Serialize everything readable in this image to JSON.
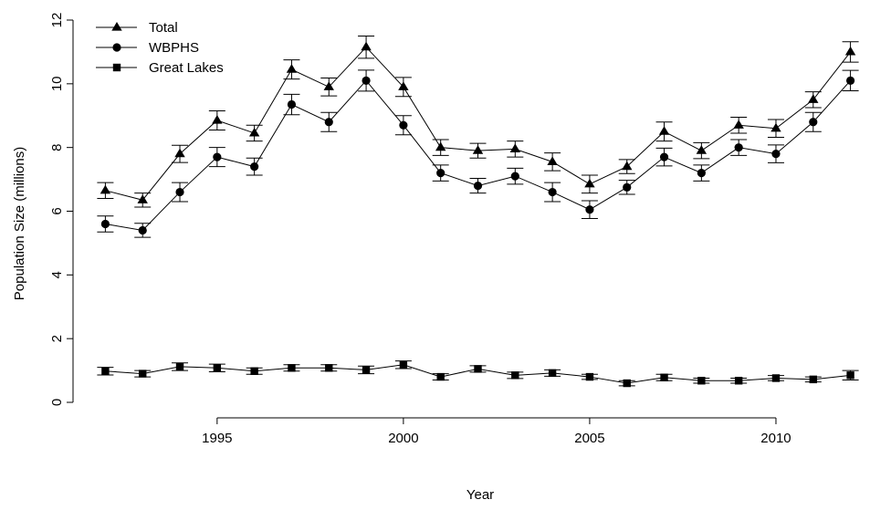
{
  "chart_data": {
    "type": "line",
    "title": "",
    "xlabel": "Year",
    "ylabel": "Population Size (millions)",
    "x": [
      1992,
      1993,
      1994,
      1995,
      1996,
      1997,
      1998,
      1999,
      2000,
      2001,
      2002,
      2003,
      2004,
      2005,
      2006,
      2007,
      2008,
      2009,
      2010,
      2011,
      2012
    ],
    "xlim": [
      1991.5,
      2012.5
    ],
    "ylim": [
      0,
      12
    ],
    "xticks": [
      1995,
      2000,
      2005,
      2010
    ],
    "yticks": [
      0,
      2,
      4,
      6,
      8,
      10,
      12
    ],
    "grid": false,
    "legend_position": "top-left",
    "series": [
      {
        "name": "Total",
        "marker": "triangle",
        "values": [
          6.65,
          6.35,
          7.8,
          8.85,
          8.45,
          10.45,
          9.9,
          11.15,
          9.9,
          8.0,
          7.9,
          7.95,
          7.55,
          6.85,
          7.4,
          8.5,
          7.9,
          8.7,
          8.6,
          9.5,
          11.0
        ],
        "errors": [
          0.25,
          0.22,
          0.27,
          0.3,
          0.25,
          0.3,
          0.28,
          0.35,
          0.3,
          0.25,
          0.23,
          0.25,
          0.28,
          0.28,
          0.22,
          0.3,
          0.25,
          0.25,
          0.28,
          0.25,
          0.32
        ]
      },
      {
        "name": "WBPHS",
        "marker": "circle",
        "values": [
          5.6,
          5.4,
          6.6,
          7.7,
          7.4,
          9.35,
          8.8,
          10.1,
          8.7,
          7.2,
          6.8,
          7.1,
          6.6,
          6.05,
          6.75,
          7.7,
          7.2,
          8.0,
          7.8,
          8.8,
          10.1
        ],
        "errors": [
          0.25,
          0.22,
          0.3,
          0.3,
          0.27,
          0.32,
          0.3,
          0.33,
          0.3,
          0.25,
          0.23,
          0.25,
          0.3,
          0.28,
          0.22,
          0.28,
          0.25,
          0.25,
          0.28,
          0.3,
          0.32
        ]
      },
      {
        "name": "Great Lakes",
        "marker": "square",
        "values": [
          0.98,
          0.9,
          1.12,
          1.08,
          0.98,
          1.08,
          1.08,
          1.02,
          1.18,
          0.8,
          1.05,
          0.85,
          0.92,
          0.8,
          0.6,
          0.78,
          0.68,
          0.68,
          0.76,
          0.72,
          0.85
        ],
        "errors": [
          0.12,
          0.1,
          0.12,
          0.12,
          0.1,
          0.1,
          0.1,
          0.12,
          0.12,
          0.1,
          0.1,
          0.1,
          0.1,
          0.08,
          0.08,
          0.1,
          0.08,
          0.08,
          0.08,
          0.08,
          0.15
        ]
      }
    ]
  }
}
